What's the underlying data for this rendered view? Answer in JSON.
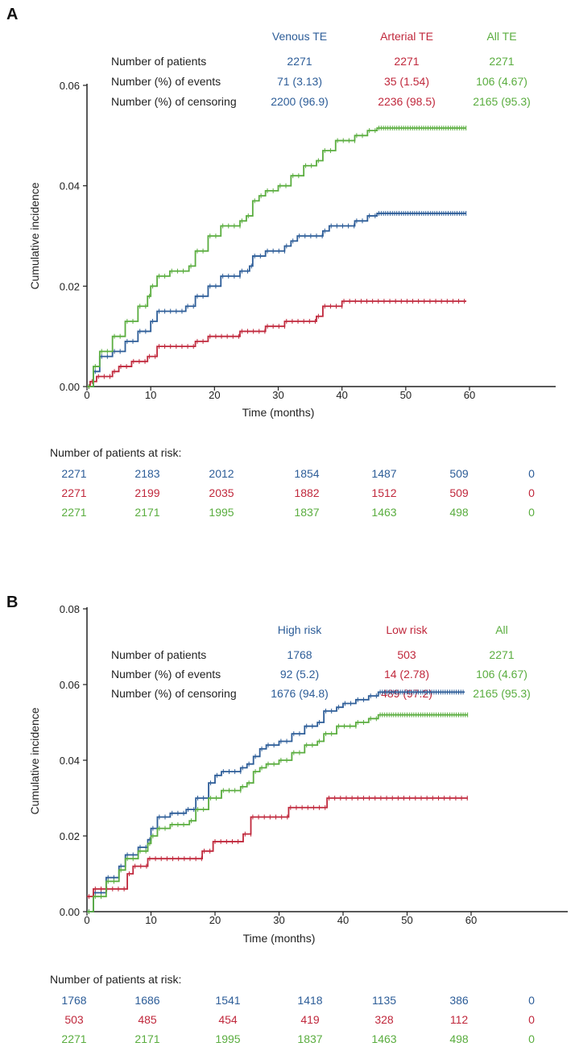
{
  "colors": {
    "blue": "#2d5d98",
    "red": "#c0283c",
    "green": "#5aad3f",
    "text": "#222222"
  },
  "chart_data": [
    {
      "panel": "A",
      "type": "line",
      "xlabel": "Time (months)",
      "ylabel": "Cumulative incidence",
      "xlim": [
        0,
        60
      ],
      "ylim": [
        0,
        0.06
      ],
      "xticks": [
        "0",
        "10",
        "20",
        "30",
        "40",
        "50",
        "60"
      ],
      "yticks": [
        "0.00",
        "0.02",
        "0.04",
        "0.06"
      ],
      "grid": false,
      "summary_table": {
        "columns": [
          "Venous TE",
          "Arterial TE",
          "All TE"
        ],
        "rows": [
          {
            "label": "Number of patients",
            "values": [
              "2271",
              "2271",
              "2271"
            ]
          },
          {
            "label": "Number (%) of events",
            "values": [
              "71 (3.13)",
              "35 (1.54)",
              "106 (4.67)"
            ]
          },
          {
            "label": "Number (%) of censoring",
            "values": [
              "2200 (96.9)",
              "2236 (98.5)",
              "2165 (95.3)"
            ]
          }
        ]
      },
      "at_risk": {
        "title": "Number of patients at risk:",
        "rows": [
          [
            "2271",
            "2183",
            "2012",
            "1854",
            "1487",
            "509",
            "0"
          ],
          [
            "2271",
            "2199",
            "2035",
            "1882",
            "1512",
            "509",
            "0"
          ],
          [
            "2271",
            "2171",
            "1995",
            "1837",
            "1463",
            "498",
            "0"
          ]
        ]
      },
      "series": [
        {
          "name": "Venous TE",
          "color": "#2d5d98",
          "points": [
            [
              0,
              0
            ],
            [
              1,
              0.003
            ],
            [
              2,
              0.006
            ],
            [
              4,
              0.007
            ],
            [
              6,
              0.009
            ],
            [
              8,
              0.011
            ],
            [
              10,
              0.013
            ],
            [
              11,
              0.015
            ],
            [
              15.5,
              0.016
            ],
            [
              17,
              0.018
            ],
            [
              19,
              0.02
            ],
            [
              21,
              0.022
            ],
            [
              24,
              0.023
            ],
            [
              25.5,
              0.024
            ],
            [
              26,
              0.026
            ],
            [
              28,
              0.027
            ],
            [
              31,
              0.028
            ],
            [
              32,
              0.029
            ],
            [
              33,
              0.03
            ],
            [
              37,
              0.031
            ],
            [
              38,
              0.032
            ],
            [
              42,
              0.033
            ],
            [
              44,
              0.034
            ],
            [
              45.5,
              0.0345
            ],
            [
              59.5,
              0.0345
            ]
          ]
        },
        {
          "name": "Arterial TE",
          "color": "#c0283c",
          "points": [
            [
              0,
              0
            ],
            [
              0.5,
              0.001
            ],
            [
              1.5,
              0.002
            ],
            [
              4,
              0.003
            ],
            [
              5,
              0.004
            ],
            [
              7,
              0.005
            ],
            [
              9.5,
              0.006
            ],
            [
              11,
              0.008
            ],
            [
              17,
              0.009
            ],
            [
              19,
              0.01
            ],
            [
              24,
              0.011
            ],
            [
              28,
              0.012
            ],
            [
              31,
              0.013
            ],
            [
              36,
              0.014
            ],
            [
              37,
              0.016
            ],
            [
              40,
              0.017
            ],
            [
              59.5,
              0.017
            ]
          ]
        },
        {
          "name": "All TE",
          "color": "#5aad3f",
          "points": [
            [
              0,
              0
            ],
            [
              1,
              0.004
            ],
            [
              2,
              0.007
            ],
            [
              4,
              0.01
            ],
            [
              6,
              0.013
            ],
            [
              8,
              0.016
            ],
            [
              9.5,
              0.018
            ],
            [
              10,
              0.02
            ],
            [
              11,
              0.022
            ],
            [
              13,
              0.023
            ],
            [
              16,
              0.024
            ],
            [
              17,
              0.027
            ],
            [
              19,
              0.03
            ],
            [
              21,
              0.032
            ],
            [
              24,
              0.033
            ],
            [
              25,
              0.034
            ],
            [
              26,
              0.037
            ],
            [
              27,
              0.038
            ],
            [
              28,
              0.039
            ],
            [
              30,
              0.04
            ],
            [
              32,
              0.042
            ],
            [
              34,
              0.044
            ],
            [
              36,
              0.045
            ],
            [
              37,
              0.047
            ],
            [
              39,
              0.049
            ],
            [
              42,
              0.05
            ],
            [
              44,
              0.051
            ],
            [
              45.5,
              0.0515
            ],
            [
              59.5,
              0.0515
            ]
          ]
        }
      ]
    },
    {
      "panel": "B",
      "type": "line",
      "xlabel": "Time (months)",
      "ylabel": "Cumulative incidence",
      "xlim": [
        0,
        60
      ],
      "ylim": [
        0,
        0.08
      ],
      "xticks": [
        "0",
        "10",
        "20",
        "30",
        "40",
        "50",
        "60"
      ],
      "yticks": [
        "0.00",
        "0.02",
        "0.04",
        "0.06",
        "0.08"
      ],
      "grid": false,
      "summary_table": {
        "columns": [
          "High risk",
          "Low risk",
          "All"
        ],
        "rows": [
          {
            "label": "Number of patients",
            "values": [
              "1768",
              "503",
              "2271"
            ]
          },
          {
            "label": "Number (%) of events",
            "values": [
              "92 (5.2)",
              "14 (2.78)",
              "106 (4.67)"
            ]
          },
          {
            "label": "Number (%) of censoring",
            "values": [
              "1676 (94.8)",
              "489 (97.2)",
              "2165 (95.3)"
            ]
          }
        ]
      },
      "at_risk": {
        "title": "Number of patients at risk:",
        "rows": [
          [
            "1768",
            "1686",
            "1541",
            "1418",
            "1135",
            "386",
            "0"
          ],
          [
            "503",
            "485",
            "454",
            "419",
            "328",
            "112",
            "0"
          ],
          [
            "2271",
            "2171",
            "1995",
            "1837",
            "1463",
            "498",
            "0"
          ]
        ]
      },
      "series": [
        {
          "name": "High risk",
          "color": "#2d5d98",
          "points": [
            [
              0,
              0
            ],
            [
              1,
              0.005
            ],
            [
              3,
              0.009
            ],
            [
              5,
              0.012
            ],
            [
              6,
              0.015
            ],
            [
              8,
              0.017
            ],
            [
              9.5,
              0.019
            ],
            [
              10,
              0.022
            ],
            [
              11,
              0.025
            ],
            [
              13,
              0.026
            ],
            [
              15.5,
              0.027
            ],
            [
              17,
              0.03
            ],
            [
              19,
              0.034
            ],
            [
              20,
              0.036
            ],
            [
              21,
              0.037
            ],
            [
              24,
              0.038
            ],
            [
              25,
              0.039
            ],
            [
              26,
              0.041
            ],
            [
              27,
              0.043
            ],
            [
              28,
              0.044
            ],
            [
              30,
              0.045
            ],
            [
              32,
              0.047
            ],
            [
              34,
              0.049
            ],
            [
              36,
              0.05
            ],
            [
              37,
              0.053
            ],
            [
              39,
              0.054
            ],
            [
              40,
              0.055
            ],
            [
              42,
              0.056
            ],
            [
              44,
              0.057
            ],
            [
              45.5,
              0.058
            ],
            [
              59,
              0.058
            ]
          ]
        },
        {
          "name": "Low risk",
          "color": "#c0283c",
          "points": [
            [
              0,
              0.004
            ],
            [
              1,
              0.006
            ],
            [
              6.3,
              0.01
            ],
            [
              7.2,
              0.012
            ],
            [
              9.5,
              0.014
            ],
            [
              18,
              0.016
            ],
            [
              19.7,
              0.0185
            ],
            [
              24.4,
              0.0205
            ],
            [
              25.6,
              0.025
            ],
            [
              31.5,
              0.0275
            ],
            [
              37.5,
              0.03
            ],
            [
              59.5,
              0.03
            ]
          ]
        },
        {
          "name": "All",
          "color": "#5aad3f",
          "points": [
            [
              0,
              0
            ],
            [
              1,
              0.004
            ],
            [
              3,
              0.008
            ],
            [
              5,
              0.011
            ],
            [
              6,
              0.014
            ],
            [
              8,
              0.016
            ],
            [
              9.5,
              0.018
            ],
            [
              10,
              0.02
            ],
            [
              11,
              0.022
            ],
            [
              13,
              0.023
            ],
            [
              16,
              0.024
            ],
            [
              17,
              0.027
            ],
            [
              19,
              0.03
            ],
            [
              21,
              0.032
            ],
            [
              24,
              0.033
            ],
            [
              25,
              0.034
            ],
            [
              26,
              0.037
            ],
            [
              27,
              0.038
            ],
            [
              28,
              0.039
            ],
            [
              30,
              0.04
            ],
            [
              32,
              0.042
            ],
            [
              34,
              0.044
            ],
            [
              36,
              0.045
            ],
            [
              37,
              0.047
            ],
            [
              39,
              0.049
            ],
            [
              42,
              0.05
            ],
            [
              44,
              0.051
            ],
            [
              45.5,
              0.052
            ],
            [
              59.5,
              0.052
            ]
          ]
        }
      ]
    }
  ]
}
